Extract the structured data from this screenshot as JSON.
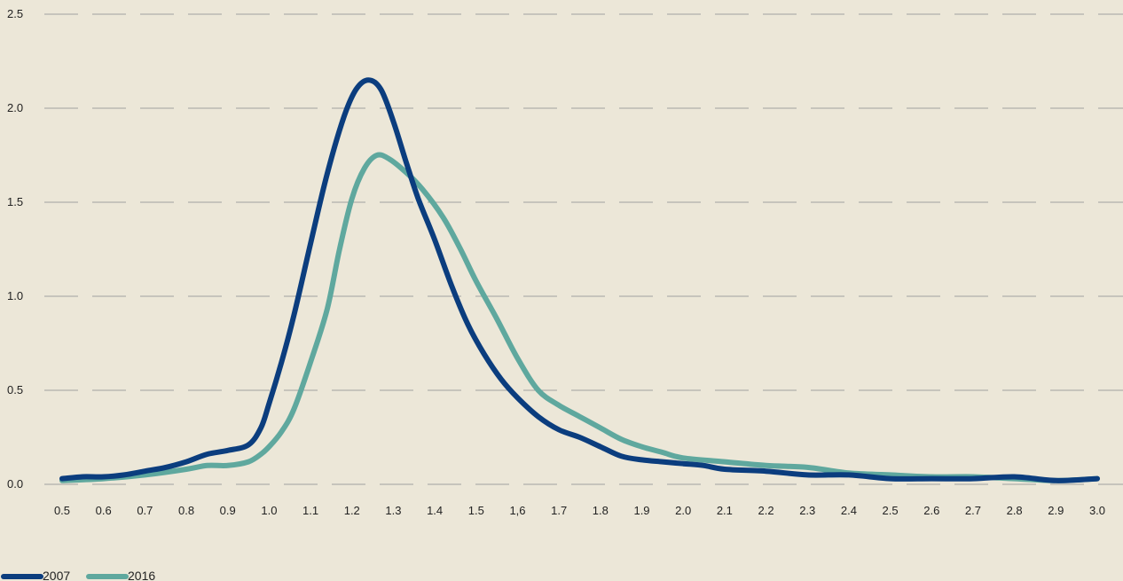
{
  "chart_data": {
    "type": "line",
    "title": "",
    "xlabel": "",
    "ylabel": "",
    "xlim": [
      0.5,
      3.0
    ],
    "ylim": [
      0,
      2.5
    ],
    "x_ticks": [
      "0.5",
      "0.6",
      "0.7",
      "0.8",
      "0.9",
      "1.0",
      "1.1",
      "1.2",
      "1.3",
      "1.4",
      "1.5",
      "1,6",
      "1.7",
      "1.8",
      "1.9",
      "2.0",
      "2.1",
      "2.2",
      "2.3",
      "2.4",
      "2.5",
      "2.6",
      "2.7",
      "2.8",
      "2.9",
      "3.0"
    ],
    "y_ticks": [
      "0.0",
      "0.5",
      "1.0",
      "1.5",
      "2.0",
      "2.5"
    ],
    "grid": "horizontal dashed",
    "legend_position": "bottom-left",
    "series": [
      {
        "name": "2007",
        "color": "#0b3d7e",
        "points": [
          [
            0.5,
            0.03
          ],
          [
            0.55,
            0.04
          ],
          [
            0.6,
            0.04
          ],
          [
            0.65,
            0.05
          ],
          [
            0.7,
            0.07
          ],
          [
            0.75,
            0.09
          ],
          [
            0.8,
            0.12
          ],
          [
            0.85,
            0.16
          ],
          [
            0.9,
            0.18
          ],
          [
            0.95,
            0.21
          ],
          [
            0.98,
            0.3
          ],
          [
            1.0,
            0.43
          ],
          [
            1.03,
            0.65
          ],
          [
            1.06,
            0.9
          ],
          [
            1.1,
            1.28
          ],
          [
            1.14,
            1.65
          ],
          [
            1.18,
            1.95
          ],
          [
            1.21,
            2.1
          ],
          [
            1.24,
            2.15
          ],
          [
            1.27,
            2.1
          ],
          [
            1.3,
            1.93
          ],
          [
            1.33,
            1.72
          ],
          [
            1.36,
            1.52
          ],
          [
            1.4,
            1.3
          ],
          [
            1.44,
            1.06
          ],
          [
            1.48,
            0.85
          ],
          [
            1.52,
            0.69
          ],
          [
            1.56,
            0.56
          ],
          [
            1.6,
            0.46
          ],
          [
            1.65,
            0.36
          ],
          [
            1.7,
            0.29
          ],
          [
            1.75,
            0.25
          ],
          [
            1.8,
            0.2
          ],
          [
            1.85,
            0.15
          ],
          [
            1.9,
            0.13
          ],
          [
            1.95,
            0.12
          ],
          [
            2.0,
            0.11
          ],
          [
            2.05,
            0.1
          ],
          [
            2.1,
            0.08
          ],
          [
            2.2,
            0.07
          ],
          [
            2.3,
            0.05
          ],
          [
            2.4,
            0.05
          ],
          [
            2.5,
            0.03
          ],
          [
            2.6,
            0.03
          ],
          [
            2.7,
            0.03
          ],
          [
            2.8,
            0.04
          ],
          [
            2.9,
            0.02
          ],
          [
            3.0,
            0.03
          ]
        ]
      },
      {
        "name": "2016",
        "color": "#5fa89e",
        "points": [
          [
            0.5,
            0.02
          ],
          [
            0.6,
            0.03
          ],
          [
            0.7,
            0.05
          ],
          [
            0.8,
            0.08
          ],
          [
            0.85,
            0.1
          ],
          [
            0.9,
            0.1
          ],
          [
            0.95,
            0.12
          ],
          [
            0.98,
            0.16
          ],
          [
            1.0,
            0.2
          ],
          [
            1.03,
            0.28
          ],
          [
            1.06,
            0.4
          ],
          [
            1.1,
            0.65
          ],
          [
            1.14,
            0.93
          ],
          [
            1.17,
            1.25
          ],
          [
            1.2,
            1.52
          ],
          [
            1.23,
            1.68
          ],
          [
            1.26,
            1.75
          ],
          [
            1.29,
            1.73
          ],
          [
            1.33,
            1.66
          ],
          [
            1.37,
            1.57
          ],
          [
            1.42,
            1.42
          ],
          [
            1.46,
            1.26
          ],
          [
            1.5,
            1.08
          ],
          [
            1.55,
            0.88
          ],
          [
            1.6,
            0.67
          ],
          [
            1.65,
            0.5
          ],
          [
            1.7,
            0.42
          ],
          [
            1.75,
            0.36
          ],
          [
            1.8,
            0.3
          ],
          [
            1.85,
            0.24
          ],
          [
            1.9,
            0.2
          ],
          [
            1.95,
            0.17
          ],
          [
            2.0,
            0.14
          ],
          [
            2.1,
            0.12
          ],
          [
            2.2,
            0.1
          ],
          [
            2.3,
            0.09
          ],
          [
            2.4,
            0.06
          ],
          [
            2.5,
            0.05
          ],
          [
            2.6,
            0.04
          ],
          [
            2.7,
            0.04
          ],
          [
            2.8,
            0.03
          ],
          [
            2.9,
            0.02
          ],
          [
            3.0,
            0.03
          ]
        ]
      }
    ]
  },
  "colors": {
    "background": "#ece7d8",
    "grid": "#a0a0a0",
    "text": "#222222"
  }
}
